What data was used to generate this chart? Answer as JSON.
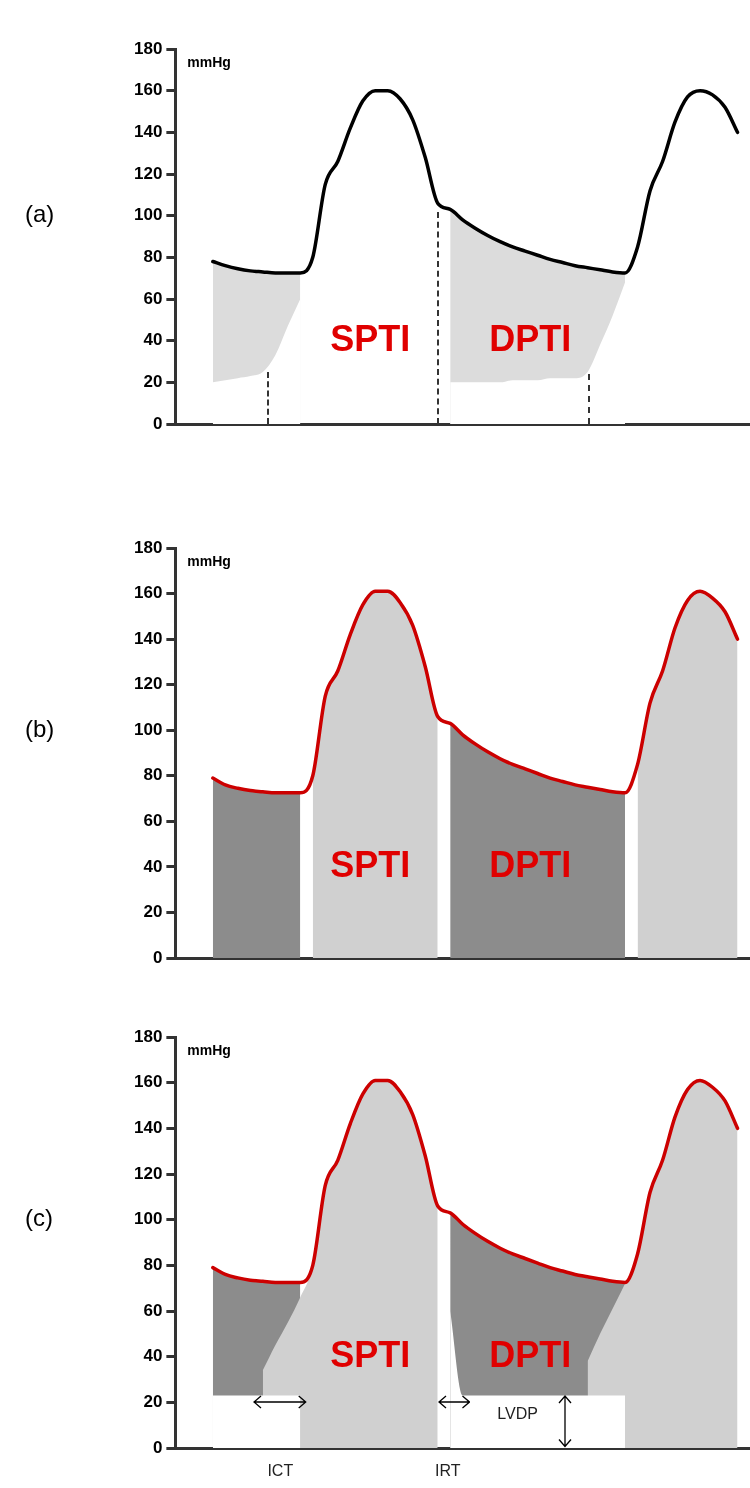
{
  "chart_data": [
    {
      "type": "line",
      "title": "(a)",
      "ylabel": "mmHg",
      "categories": [
        null,
        null,
        null,
        null,
        null,
        null,
        null,
        null,
        null,
        null,
        null,
        null,
        null,
        null,
        null,
        null,
        null,
        null,
        null,
        null,
        null,
        null,
        null,
        null,
        null,
        null,
        null,
        null,
        null,
        null,
        null,
        null,
        null,
        null,
        null,
        null,
        null,
        null,
        null,
        null,
        null,
        null,
        null,
        null,
        null,
        null,
        null
      ],
      "ylim": [
        0,
        180
      ],
      "yticks": [
        0,
        20,
        40,
        60,
        80,
        100,
        120,
        140,
        160,
        180
      ],
      "grid": false,
      "legend": false,
      "marker": "none",
      "tick_labels": "y",
      "series": [
        {
          "color": "#000000",
          "values": [
            null,
            null,
            null,
            78,
            76,
            74.5,
            73.5,
            73,
            72.5,
            72.5,
            72.5,
            80,
            115,
            126,
            142,
            155,
            160,
            160,
            156,
            146,
            128,
            106,
            103,
            98,
            94,
            90.5,
            87.5,
            85,
            83,
            81,
            79,
            77.5,
            76,
            75,
            74,
            73,
            72.5,
            85,
            112,
            126,
            145,
            157,
            160,
            158,
            152,
            140,
            null
          ]
        },
        {
          "type": "area",
          "color": "#ffffff",
          "values": [
            null,
            null,
            null,
            20,
            21,
            22,
            23,
            25,
            33,
            47,
            60,
            null,
            null,
            null,
            null,
            null,
            null,
            null,
            null,
            null,
            null,
            null,
            20,
            20,
            20,
            20,
            20,
            21,
            21,
            21,
            22,
            22,
            22,
            25,
            38,
            52,
            68,
            null,
            null,
            null,
            null,
            null,
            null,
            null,
            null,
            null,
            null
          ]
        },
        {
          "type": "area",
          "color": "#dcdcdc",
          "values": [
            null,
            null,
            null,
            78,
            76,
            74.5,
            73.5,
            73,
            72.5,
            72.5,
            72.5,
            null,
            null,
            null,
            null,
            null,
            null,
            null,
            null,
            null,
            null,
            null,
            103,
            98,
            94,
            90.5,
            87.5,
            85,
            83,
            81,
            79,
            77.5,
            76,
            75,
            74,
            73,
            72.5,
            null,
            null,
            null,
            null,
            null,
            null,
            null,
            null,
            null,
            null
          ]
        }
      ],
      "annotations": [
        "SPTI",
        "DPTI"
      ]
    },
    {
      "type": "line",
      "title": "(b)",
      "ylabel": "mmHg",
      "categories": [
        null,
        null,
        null,
        null,
        null,
        null,
        null,
        null,
        null,
        null,
        null,
        null,
        null,
        null,
        null,
        null,
        null,
        null,
        null,
        null,
        null,
        null,
        null,
        null,
        null,
        null,
        null,
        null,
        null,
        null,
        null,
        null,
        null,
        null,
        null,
        null,
        null,
        null,
        null,
        null,
        null,
        null,
        null,
        null,
        null,
        null,
        null
      ],
      "ylim": [
        0,
        180
      ],
      "yticks": [
        0,
        20,
        40,
        60,
        80,
        100,
        120,
        140,
        160,
        180
      ],
      "grid": false,
      "legend": false,
      "marker": "none",
      "tick_labels": "y",
      "series": [
        {
          "color": "#cc0000",
          "values": [
            null,
            null,
            null,
            79,
            76,
            74.5,
            73.5,
            73,
            72.5,
            72.5,
            72.5,
            80,
            115,
            126,
            142,
            155,
            161,
            161,
            156,
            146,
            128,
            106,
            103,
            98,
            94,
            90.5,
            87.5,
            85,
            83,
            81,
            79,
            77.5,
            76,
            75,
            74,
            73,
            72.5,
            85,
            112,
            126,
            145,
            157,
            161,
            158,
            152,
            140,
            null
          ]
        },
        {
          "type": "area",
          "color": "#d0d0d0",
          "values": [
            null,
            null,
            null,
            null,
            null,
            null,
            null,
            null,
            null,
            null,
            null,
            80,
            115,
            126,
            142,
            155,
            161,
            161,
            156,
            146,
            128,
            106,
            null,
            null,
            null,
            null,
            null,
            null,
            null,
            null,
            null,
            null,
            null,
            null,
            null,
            null,
            null,
            85,
            112,
            126,
            145,
            157,
            161,
            158,
            152,
            140,
            null
          ]
        },
        {
          "type": "area",
          "color": "#8c8c8c",
          "values": [
            null,
            null,
            null,
            79,
            76,
            74.5,
            73.5,
            73,
            72.5,
            72.5,
            72.5,
            null,
            null,
            null,
            null,
            null,
            null,
            null,
            null,
            null,
            null,
            null,
            103,
            98,
            94,
            90.5,
            87.5,
            85,
            83,
            81,
            79,
            77.5,
            76,
            75,
            74,
            73,
            72.5,
            null,
            null,
            null,
            null,
            null,
            null,
            null,
            null,
            null,
            null
          ]
        }
      ],
      "annotations": [
        "SPTI",
        "DPTI"
      ]
    },
    {
      "type": "line",
      "title": "(c)",
      "ylabel": "mmHg",
      "categories": [
        null,
        null,
        null,
        null,
        null,
        null,
        null,
        null,
        null,
        null,
        null,
        null,
        null,
        null,
        null,
        null,
        null,
        null,
        null,
        null,
        null,
        null,
        null,
        null,
        null,
        null,
        null,
        null,
        null,
        null,
        null,
        null,
        null,
        null,
        null,
        null,
        null,
        null,
        null,
        null,
        null,
        null,
        null,
        null,
        null,
        null,
        null
      ],
      "ylim": [
        0,
        180
      ],
      "yticks": [
        0,
        20,
        40,
        60,
        80,
        100,
        120,
        140,
        160,
        180
      ],
      "grid": false,
      "legend": false,
      "marker": "none",
      "tick_labels": "y",
      "series": [
        {
          "color": "#cc0000",
          "values": [
            null,
            null,
            null,
            79,
            76,
            74.5,
            73.5,
            73,
            72.5,
            72.5,
            72.5,
            80,
            115,
            126,
            142,
            155,
            161,
            161,
            156,
            146,
            128,
            106,
            103,
            98,
            94,
            90.5,
            87.5,
            85,
            83,
            81,
            79,
            77.5,
            76,
            75,
            74,
            73,
            72.5,
            85,
            112,
            126,
            145,
            157,
            161,
            158,
            152,
            140,
            null
          ]
        },
        {
          "type": "area",
          "color": "#ffffff",
          "values": [
            null,
            null,
            null,
            23,
            23,
            23,
            23,
            23,
            23,
            23,
            23,
            null,
            null,
            null,
            null,
            null,
            null,
            null,
            null,
            null,
            null,
            null,
            60,
            23,
            23,
            23,
            23,
            23,
            23,
            23,
            23,
            23,
            23,
            23,
            23,
            23,
            23,
            null,
            null,
            null,
            null,
            null,
            null,
            null,
            null,
            null,
            null
          ]
        },
        {
          "type": "area",
          "color": "#d0d0d0",
          "values": [
            null,
            null,
            null,
            null,
            null,
            null,
            null,
            34,
            45,
            55,
            66,
            80,
            115,
            126,
            142,
            155,
            161,
            161,
            156,
            146,
            128,
            106,
            null,
            null,
            null,
            null,
            null,
            null,
            null,
            null,
            null,
            null,
            null,
            38,
            50,
            61,
            72,
            85,
            112,
            126,
            145,
            157,
            161,
            158,
            152,
            140,
            null
          ]
        },
        {
          "type": "area",
          "color": "#8c8c8c",
          "values": [
            null,
            null,
            null,
            79,
            76,
            74.5,
            73.5,
            73,
            72.5,
            72.5,
            72.5,
            null,
            null,
            null,
            null,
            null,
            null,
            null,
            null,
            null,
            null,
            null,
            103,
            98,
            94,
            90.5,
            87.5,
            85,
            83,
            81,
            79,
            77.5,
            76,
            75,
            74,
            73,
            72.5,
            null,
            null,
            null,
            null,
            null,
            null,
            null,
            null,
            null,
            null
          ]
        }
      ],
      "annotations": [
        "SPTI",
        "DPTI",
        "LVDP",
        "ICT",
        "IRT"
      ]
    }
  ]
}
